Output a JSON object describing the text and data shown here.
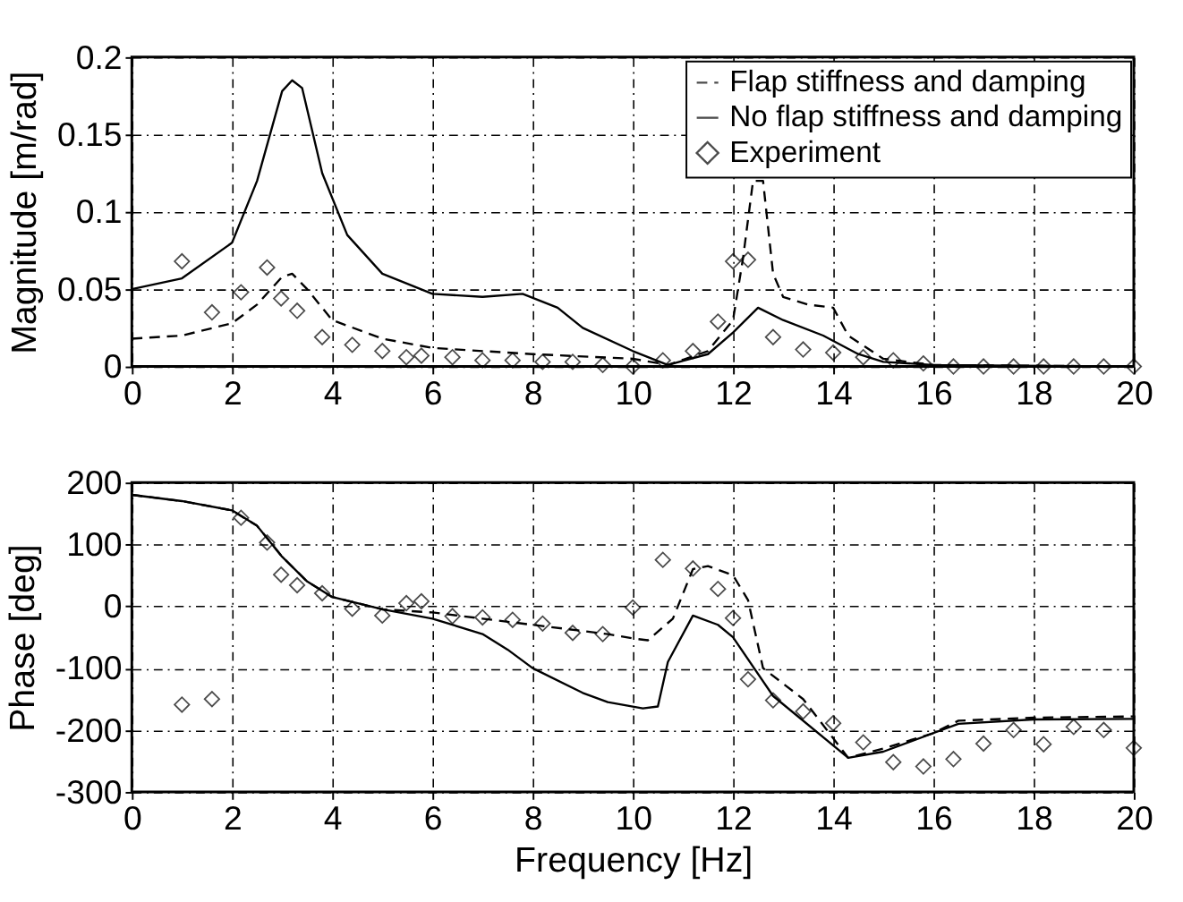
{
  "chart_data": [
    {
      "type": "line",
      "ylabel": "Magnitude [m/rad]",
      "xlim": [
        0,
        20
      ],
      "xticks": [
        0,
        2,
        4,
        6,
        8,
        10,
        12,
        14,
        16,
        18,
        20
      ],
      "ylim": [
        0,
        0.2
      ],
      "yticks": [
        0,
        0.05,
        0.1,
        0.15,
        0.2
      ],
      "grid": true,
      "legend": "top right",
      "series": [
        {
          "name": "Flap stiffness and damping",
          "color": "#000000",
          "line_style": "dashed",
          "x": [
            0,
            1,
            2,
            2.5,
            3,
            3.2,
            3.5,
            4,
            5,
            6,
            8,
            10,
            10.7,
            11.5,
            12,
            12.2,
            12.4,
            12.6,
            12.8,
            13,
            13.5,
            14,
            14.3,
            15,
            16,
            20
          ],
          "values": [
            0.018,
            0.02,
            0.028,
            0.04,
            0.058,
            0.06,
            0.05,
            0.03,
            0.018,
            0.012,
            0.008,
            0.005,
            0.001,
            0.01,
            0.03,
            0.07,
            0.12,
            0.12,
            0.06,
            0.045,
            0.04,
            0.038,
            0.02,
            0.005,
            0.001,
            0
          ]
        },
        {
          "name": "No flap stiffness and damping",
          "color": "#000000",
          "line_style": "solid",
          "x": [
            0,
            1,
            2,
            2.5,
            3,
            3.2,
            3.4,
            3.8,
            4.3,
            5,
            6,
            7,
            7.8,
            8.5,
            9,
            10,
            10.7,
            11.5,
            12,
            12.5,
            13,
            13.8,
            14.5,
            15,
            16,
            20
          ],
          "values": [
            0.05,
            0.057,
            0.08,
            0.12,
            0.178,
            0.185,
            0.18,
            0.125,
            0.085,
            0.06,
            0.047,
            0.045,
            0.047,
            0.038,
            0.025,
            0.01,
            0.001,
            0.008,
            0.022,
            0.038,
            0.03,
            0.02,
            0.008,
            0.003,
            0.001,
            0
          ]
        },
        {
          "name": "Experiment",
          "type": "scatter",
          "marker": "diamond",
          "color": "#000000",
          "x": [
            1.0,
            1.6,
            2.18,
            2.7,
            2.98,
            3.3,
            3.8,
            4.4,
            5.0,
            5.48,
            5.78,
            6.4,
            7.0,
            7.6,
            8.2,
            8.8,
            9.4,
            10.0,
            10.6,
            11.2,
            11.7,
            12.0,
            12.3,
            12.8,
            13.4,
            14.0,
            14.6,
            15.2,
            15.8,
            16.4,
            17.0,
            17.6,
            18.2,
            18.8,
            19.4,
            20.0
          ],
          "values": [
            0.068,
            0.035,
            0.048,
            0.064,
            0.044,
            0.036,
            0.019,
            0.014,
            0.01,
            0.006,
            0.007,
            0.006,
            0.004,
            0.004,
            0.003,
            0.003,
            0.001,
            0,
            0.004,
            0.01,
            0.029,
            0.068,
            0.069,
            0.019,
            0.011,
            0.009,
            0.006,
            0.004,
            0.002,
            0,
            0,
            0,
            0,
            0,
            0,
            0
          ]
        }
      ]
    },
    {
      "type": "line",
      "xlabel": "Frequency [Hz]",
      "ylabel": "Phase [deg]",
      "xlim": [
        0,
        20
      ],
      "xticks": [
        0,
        2,
        4,
        6,
        8,
        10,
        12,
        14,
        16,
        18,
        20
      ],
      "ylim": [
        -300,
        200
      ],
      "yticks": [
        -300,
        -200,
        -100,
        0,
        100,
        200
      ],
      "grid": true,
      "series": [
        {
          "color": "#000000",
          "line_style": "dashed",
          "x": [
            0,
            1,
            2,
            2.5,
            3,
            3.5,
            4,
            5,
            6,
            7,
            8,
            9,
            9.5,
            10,
            10.3,
            10.8,
            11.2,
            11.5,
            12,
            12.3,
            12.6,
            13.4,
            14.3,
            15,
            16,
            16.5,
            18,
            20
          ],
          "values": [
            180,
            170,
            155,
            130,
            80,
            40,
            15,
            -5,
            -10,
            -20,
            -30,
            -40,
            -45,
            -52,
            -55,
            -20,
            60,
            65,
            50,
            10,
            -100,
            -150,
            -245,
            -230,
            -205,
            -185,
            -180,
            -178
          ]
        },
        {
          "color": "#000000",
          "line_style": "solid",
          "x": [
            0,
            1,
            2,
            2.5,
            3,
            3.5,
            4,
            5,
            6,
            7,
            7.5,
            8,
            9,
            9.5,
            10.2,
            10.5,
            10.7,
            11.2,
            11.7,
            12,
            12.8,
            14.3,
            15,
            16,
            16.5,
            18,
            20
          ],
          "values": [
            180,
            170,
            155,
            130,
            80,
            40,
            15,
            -5,
            -20,
            -45,
            -70,
            -100,
            -140,
            -155,
            -165,
            -162,
            -90,
            -15,
            -30,
            -50,
            -145,
            -245,
            -235,
            -205,
            -190,
            -183,
            -182
          ]
        },
        {
          "type": "scatter",
          "marker": "diamond",
          "color": "#000000",
          "x": [
            1.0,
            1.6,
            2.18,
            2.7,
            2.98,
            3.3,
            3.8,
            4.4,
            5.0,
            5.48,
            5.78,
            6.4,
            7.0,
            7.6,
            8.2,
            8.8,
            9.4,
            10.0,
            10.6,
            11.2,
            11.7,
            12.0,
            12.3,
            12.8,
            13.4,
            14.0,
            14.6,
            15.2,
            15.8,
            16.4,
            17.0,
            17.6,
            18.2,
            18.8,
            19.4,
            20.0
          ],
          "values": [
            -159,
            -150,
            143,
            103,
            51,
            34,
            21,
            -4,
            -15,
            5,
            8,
            -16,
            -18,
            -22,
            -28,
            -43,
            -45,
            -2,
            75,
            61,
            28,
            -19,
            -118,
            -152,
            -170,
            -189,
            -220,
            -252,
            -259,
            -247,
            -222,
            -200,
            -223,
            -195,
            -200,
            -229
          ]
        }
      ]
    }
  ]
}
